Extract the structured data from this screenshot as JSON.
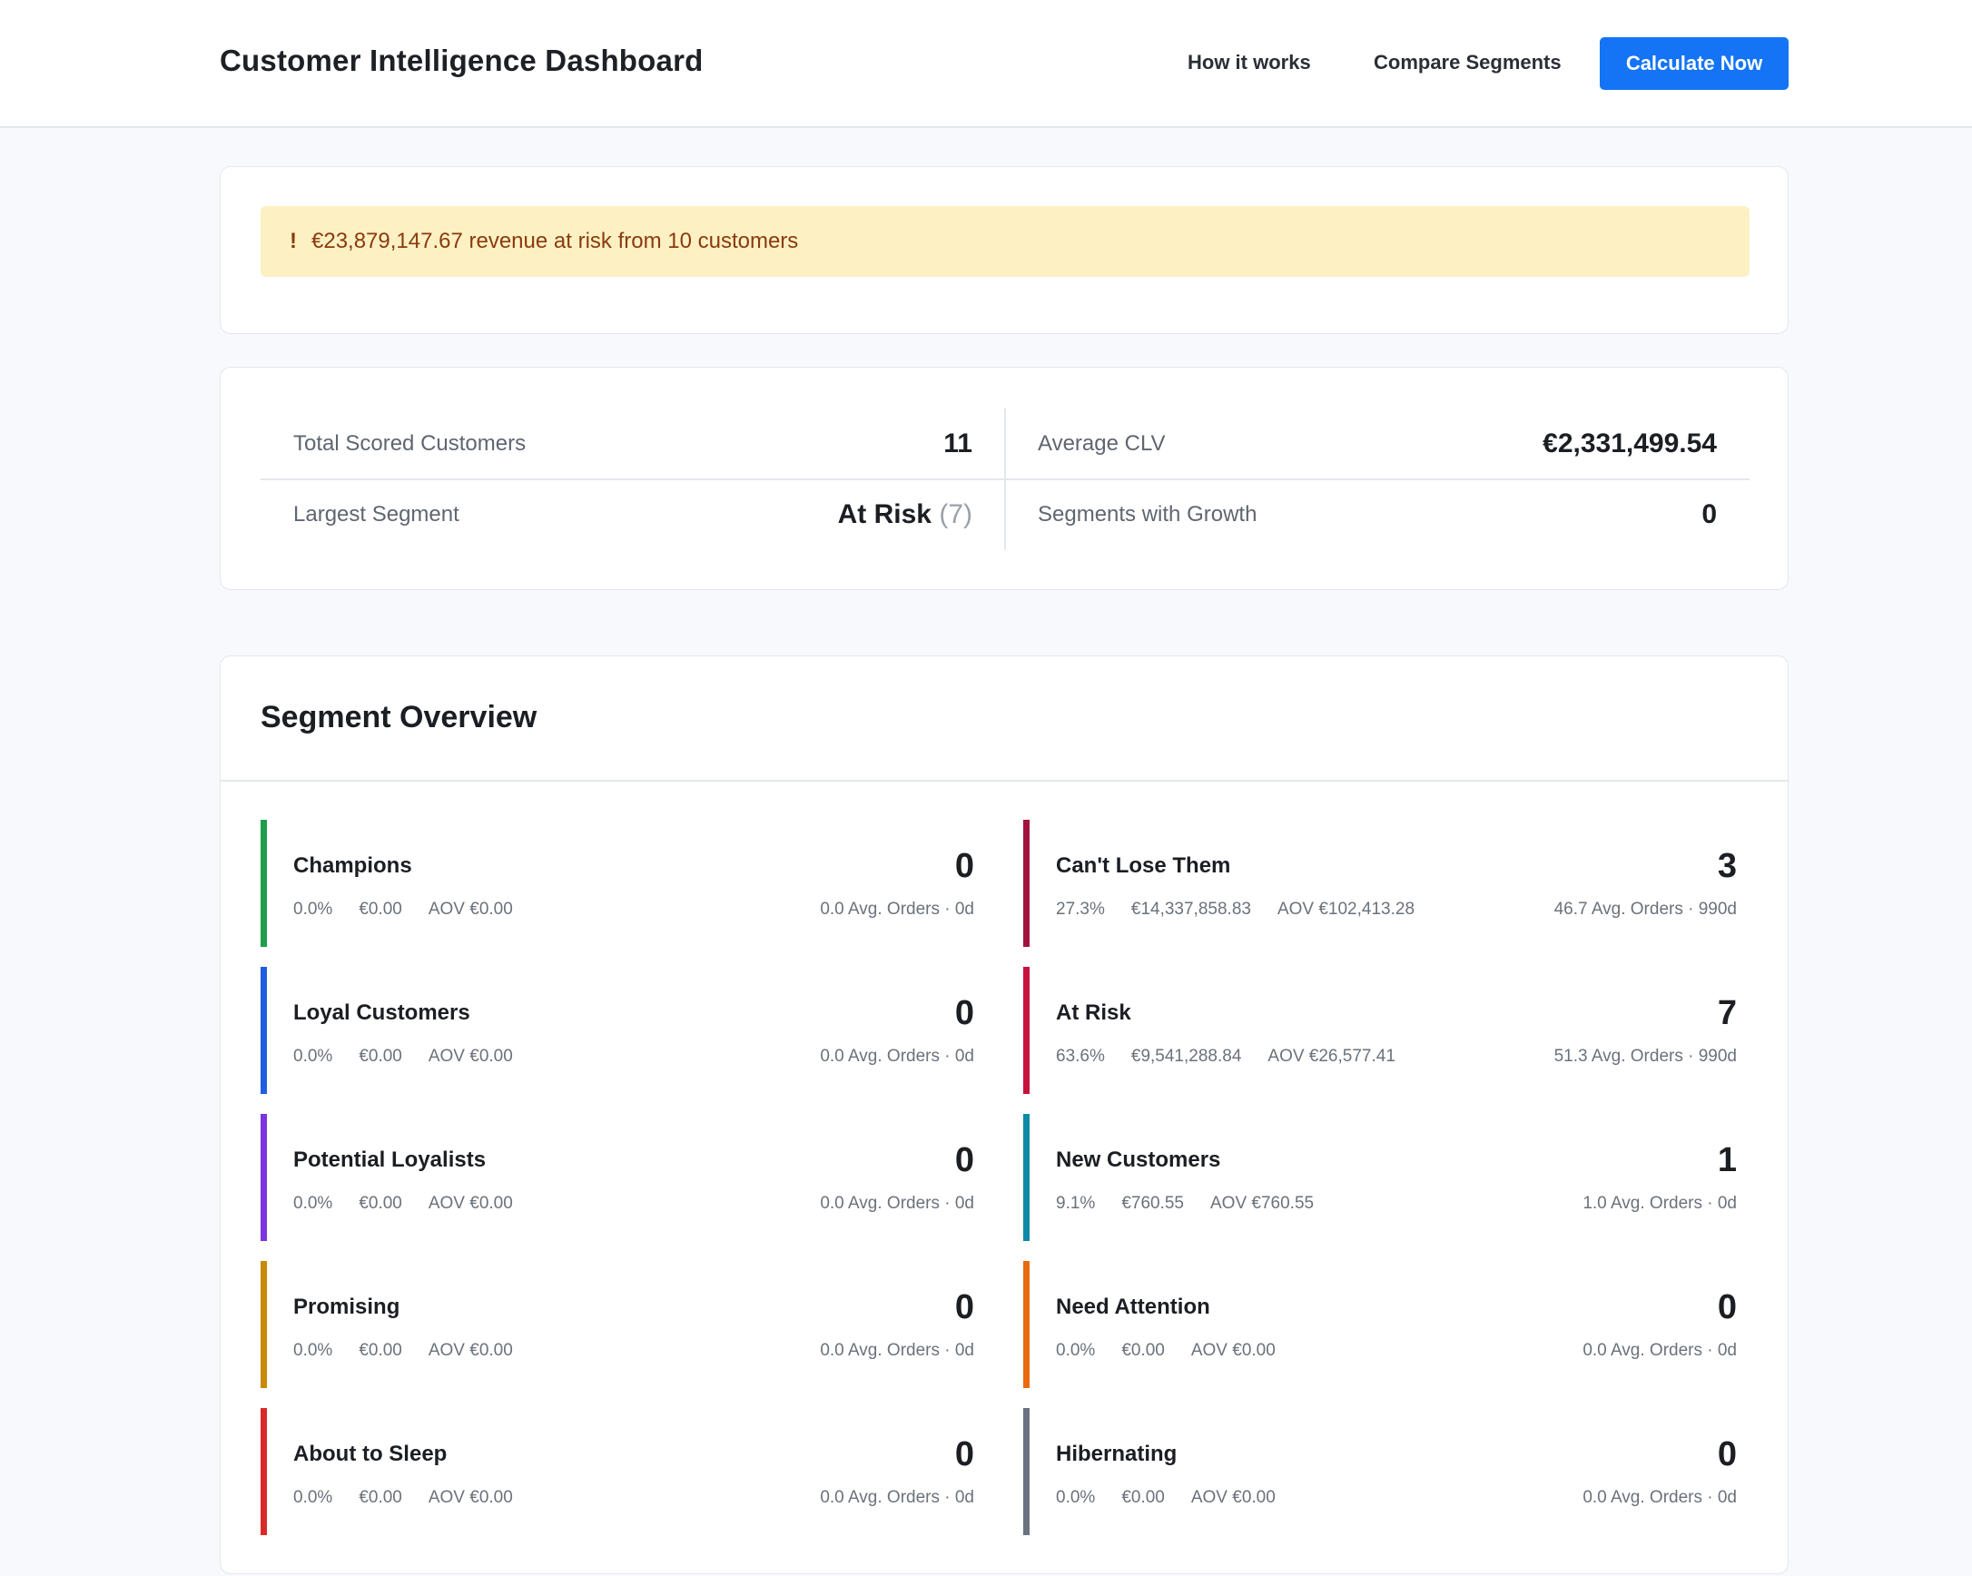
{
  "header": {
    "title": "Customer Intelligence Dashboard",
    "nav": {
      "how_it_works": "How it works",
      "compare_segments": "Compare Segments"
    },
    "cta_label": "Calculate Now"
  },
  "alert": {
    "icon": "!",
    "text": "€23,879,147.67 revenue at risk from 10 customers",
    "color": "#8a3a0e",
    "background": "#fdf1c4"
  },
  "stats": {
    "total_scored_customers": {
      "label": "Total Scored Customers",
      "value": "11"
    },
    "average_clv": {
      "label": "Average CLV",
      "value": "€2,331,499.54"
    },
    "largest_segment": {
      "label": "Largest Segment",
      "value": "At Risk",
      "count": "(7)"
    },
    "segments_with_growth": {
      "label": "Segments with Growth",
      "value": "0"
    }
  },
  "segment_overview": {
    "title": "Segment Overview",
    "segments": [
      {
        "name": "Champions",
        "count": "0",
        "pct": "0.0%",
        "revenue": "€0.00",
        "aov": "AOV €0.00",
        "right": "0.0 Avg. Orders · 0d",
        "color": "#1e9e4a"
      },
      {
        "name": "Can't Lose Them",
        "count": "3",
        "pct": "27.3%",
        "revenue": "€14,337,858.83",
        "aov": "AOV €102,413.28",
        "right": "46.7 Avg. Orders · 990d",
        "color": "#a3123f"
      },
      {
        "name": "Loyal Customers",
        "count": "0",
        "pct": "0.0%",
        "revenue": "€0.00",
        "aov": "AOV €0.00",
        "right": "0.0 Avg. Orders · 0d",
        "color": "#1f5ee0"
      },
      {
        "name": "At Risk",
        "count": "7",
        "pct": "63.6%",
        "revenue": "€9,541,288.84",
        "aov": "AOV €26,577.41",
        "right": "51.3 Avg. Orders · 990d",
        "color": "#c8123e"
      },
      {
        "name": "Potential Loyalists",
        "count": "0",
        "pct": "0.0%",
        "revenue": "€0.00",
        "aov": "AOV €0.00",
        "right": "0.0 Avg. Orders · 0d",
        "color": "#7c33e0"
      },
      {
        "name": "New Customers",
        "count": "1",
        "pct": "9.1%",
        "revenue": "€760.55",
        "aov": "AOV €760.55",
        "right": "1.0 Avg. Orders · 0d",
        "color": "#0e8aa8"
      },
      {
        "name": "Promising",
        "count": "0",
        "pct": "0.0%",
        "revenue": "€0.00",
        "aov": "AOV €0.00",
        "right": "0.0 Avg. Orders · 0d",
        "color": "#c98a08"
      },
      {
        "name": "Need Attention",
        "count": "0",
        "pct": "0.0%",
        "revenue": "€0.00",
        "aov": "AOV €0.00",
        "right": "0.0 Avg. Orders · 0d",
        "color": "#ea6a10"
      },
      {
        "name": "About to Sleep",
        "count": "0",
        "pct": "0.0%",
        "revenue": "€0.00",
        "aov": "AOV €0.00",
        "right": "0.0 Avg. Orders · 0d",
        "color": "#d92a2a"
      },
      {
        "name": "Hibernating",
        "count": "0",
        "pct": "0.0%",
        "revenue": "€0.00",
        "aov": "AOV €0.00",
        "right": "0.0 Avg. Orders · 0d",
        "color": "#6b7280"
      }
    ]
  },
  "colors": {
    "accent": "#1474f5",
    "page_background": "#f8f9fc"
  }
}
